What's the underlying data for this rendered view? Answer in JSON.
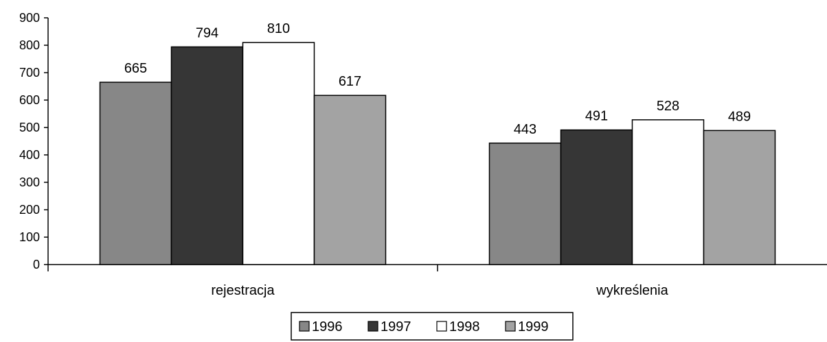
{
  "chart_data": {
    "type": "bar",
    "title": "",
    "xlabel": "",
    "ylabel": "",
    "categories": [
      "rejestracja",
      "wykreślenia"
    ],
    "series": [
      {
        "name": "1996",
        "values": [
          665,
          443
        ],
        "color": "#878787"
      },
      {
        "name": "1997",
        "values": [
          794,
          491
        ],
        "color": "#363636"
      },
      {
        "name": "1998",
        "values": [
          810,
          528
        ],
        "color": "#ffffff"
      },
      {
        "name": "1999",
        "values": [
          617,
          489
        ],
        "color": "#a3a3a3"
      }
    ],
    "ylim": [
      0,
      900
    ],
    "yticks": [
      0,
      100,
      200,
      300,
      400,
      500,
      600,
      700,
      800,
      900
    ],
    "grid": false,
    "data_labels": true,
    "legend_position": "bottom"
  }
}
